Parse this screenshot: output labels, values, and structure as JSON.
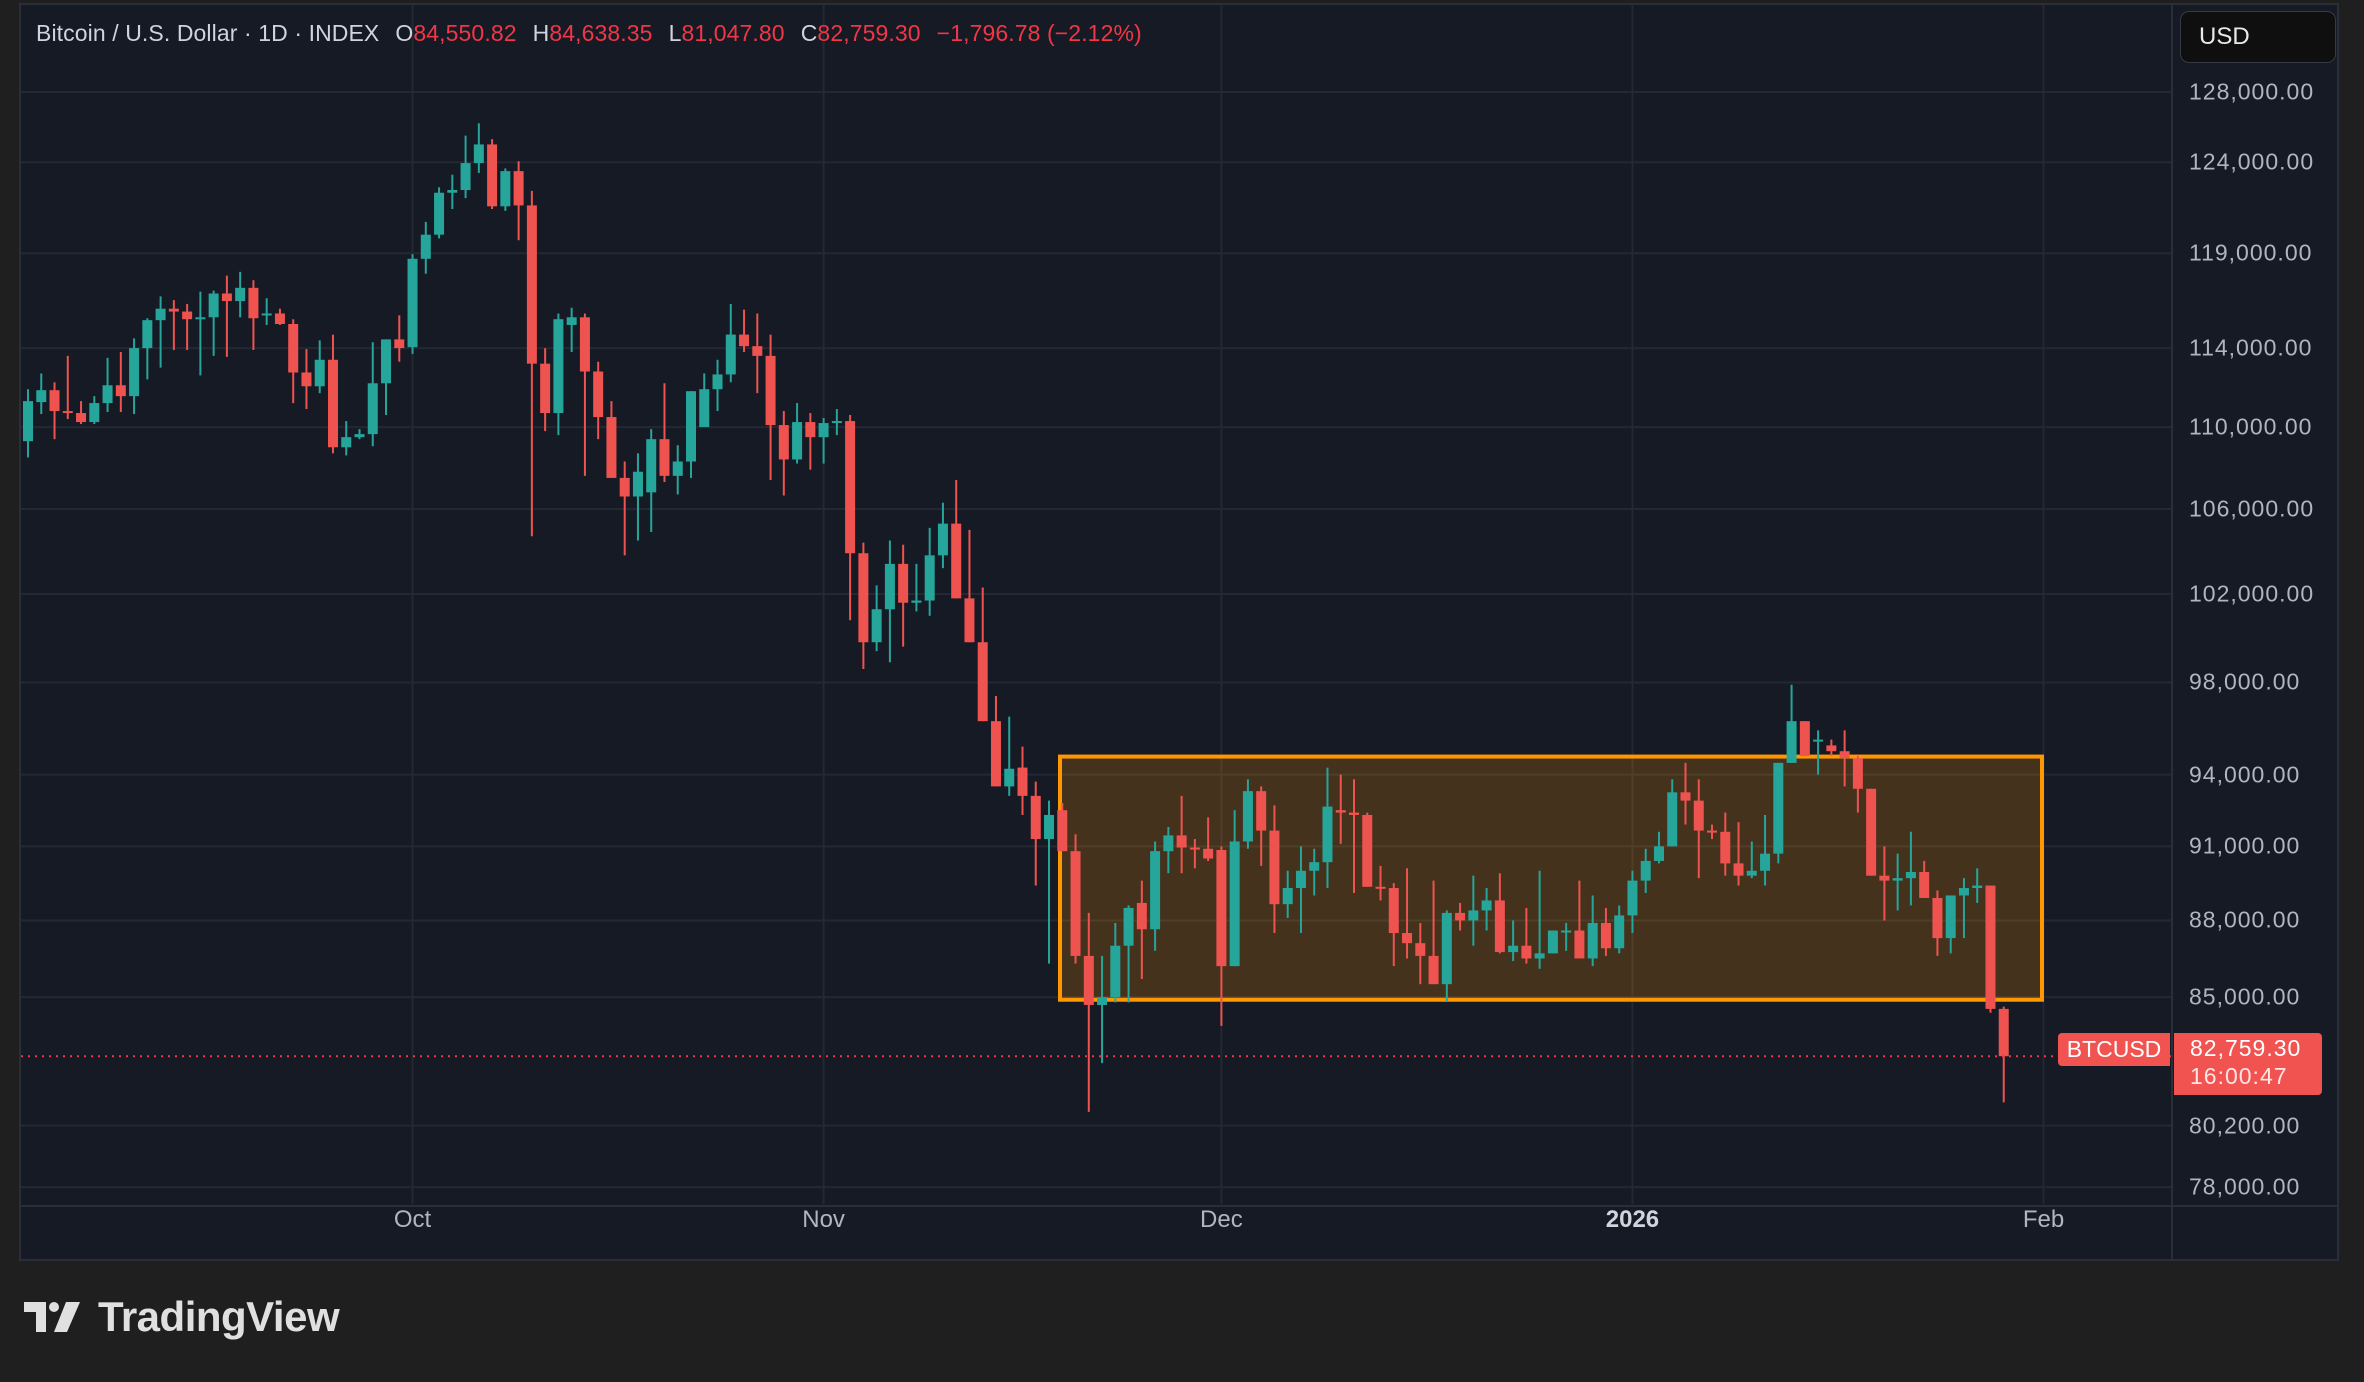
{
  "header": {
    "title": "Bitcoin / U.S. Dollar · 1D · INDEX",
    "ohlc": [
      {
        "key": "O",
        "value": "84,550.82"
      },
      {
        "key": "H",
        "value": "84,638.35"
      },
      {
        "key": "L",
        "value": "81,047.80"
      },
      {
        "key": "C",
        "value": "82,759.30"
      }
    ],
    "change": "−1,796.78 (−2.12%)"
  },
  "currency_button": "USD",
  "symbol_tag": "BTCUSD",
  "last_price": {
    "value": "82,759.30",
    "countdown": "16:00:47",
    "price": 82759.3
  },
  "brand": "TradingView",
  "colors": {
    "up": "#26a69a",
    "down": "#ef5350",
    "box_border": "#ff9800",
    "box_fill": "rgba(255,152,0,0.20)",
    "grid": "#242833",
    "background": "#161a25"
  },
  "chart_data": {
    "type": "candlestick",
    "title": "Bitcoin / U.S. Dollar · 1D · INDEX",
    "symbol": "BTCUSD",
    "interval": "1D",
    "scale": "log",
    "ylim": [
      77000,
      130000
    ],
    "y_ticks": [
      128000,
      124000,
      119000,
      114000,
      110000,
      106000,
      102000,
      98000,
      94000,
      91000,
      88000,
      85000,
      80200,
      78000
    ],
    "y_tick_labels": [
      "128,000.00",
      "124,000.00",
      "119,000.00",
      "114,000.00",
      "110,000.00",
      "106,000.00",
      "102,000.00",
      "98,000.00",
      "94,000.00",
      "91,000.00",
      "88,000.00",
      "85,000.00",
      "80,200.00",
      "78,000.00"
    ],
    "x_ticks": [
      {
        "label": "Oct",
        "day_index": 29,
        "bold": false
      },
      {
        "label": "Nov",
        "day_index": 60,
        "bold": false
      },
      {
        "label": "Dec",
        "day_index": 90,
        "bold": false
      },
      {
        "label": "2026",
        "day_index": 121,
        "bold": true
      },
      {
        "label": "Feb",
        "day_index": 152,
        "bold": false
      }
    ],
    "start_date": "Sep 2",
    "end_date": "Jan 30",
    "candles_ohlc": [
      [
        109300,
        111900,
        108500,
        111300
      ],
      [
        111250,
        112700,
        110650,
        111850
      ],
      [
        111850,
        112250,
        109400,
        110800
      ],
      [
        110800,
        113600,
        110400,
        110700
      ],
      [
        110700,
        111300,
        110150,
        110250
      ],
      [
        110250,
        111550,
        110150,
        111200
      ],
      [
        111200,
        113500,
        110750,
        112100
      ],
      [
        112100,
        113800,
        110750,
        111550
      ],
      [
        111550,
        114500,
        110650,
        114000
      ],
      [
        114000,
        115550,
        112400,
        115450
      ],
      [
        115450,
        116700,
        113000,
        116050
      ],
      [
        116050,
        116500,
        113900,
        115900
      ],
      [
        115900,
        116300,
        113900,
        115500
      ],
      [
        115500,
        116950,
        112600,
        115600
      ],
      [
        115600,
        117000,
        113600,
        116850
      ],
      [
        116850,
        117800,
        113550,
        116450
      ],
      [
        116450,
        118000,
        115600,
        117150
      ],
      [
        117150,
        117550,
        113900,
        115550
      ],
      [
        115750,
        116600,
        115200,
        115800
      ],
      [
        115800,
        116050,
        115200,
        115250
      ],
      [
        115250,
        115500,
        111200,
        112750
      ],
      [
        112750,
        113950,
        110900,
        112050
      ],
      [
        112050,
        114400,
        111700,
        113400
      ],
      [
        113400,
        114700,
        108700,
        109000
      ],
      [
        109000,
        110300,
        108600,
        109500
      ],
      [
        109500,
        109900,
        109400,
        109650
      ],
      [
        109650,
        114300,
        109050,
        112200
      ],
      [
        112200,
        114400,
        110600,
        114450
      ],
      [
        114450,
        115700,
        113300,
        114000
      ],
      [
        114050,
        118950,
        113700,
        118700
      ],
      [
        118700,
        120700,
        117900,
        120000
      ],
      [
        120000,
        122600,
        119800,
        122300
      ],
      [
        122300,
        123300,
        121400,
        122450
      ],
      [
        122450,
        125500,
        122000,
        123950
      ],
      [
        123950,
        126200,
        123400,
        125000
      ],
      [
        125000,
        125300,
        121400,
        121550
      ],
      [
        121550,
        123650,
        121300,
        123500
      ],
      [
        123500,
        124050,
        119700,
        121600
      ],
      [
        121600,
        122400,
        104700,
        113200
      ],
      [
        113200,
        114000,
        109800,
        110700
      ],
      [
        110700,
        115800,
        109600,
        115500
      ],
      [
        115200,
        116100,
        113800,
        115600
      ],
      [
        115600,
        115800,
        107600,
        112800
      ],
      [
        112800,
        113300,
        109400,
        110500
      ],
      [
        110500,
        111300,
        107600,
        107500
      ],
      [
        107500,
        108300,
        103800,
        106600
      ],
      [
        106600,
        108700,
        104500,
        107800
      ],
      [
        106800,
        109900,
        104900,
        109400
      ],
      [
        109400,
        112200,
        107300,
        107600
      ],
      [
        107600,
        109100,
        106700,
        108300
      ],
      [
        108300,
        111400,
        107500,
        111800
      ],
      [
        110000,
        112700,
        110900,
        111900
      ],
      [
        111900,
        113400,
        110800,
        112650
      ],
      [
        112650,
        116300,
        112250,
        114700
      ],
      [
        114700,
        116000,
        113800,
        114100
      ],
      [
        114100,
        115800,
        111700,
        113600
      ],
      [
        113600,
        114700,
        107400,
        110100
      ],
      [
        110100,
        110800,
        106650,
        108400
      ],
      [
        108400,
        111200,
        108200,
        110250
      ],
      [
        110250,
        110700,
        107900,
        109500
      ],
      [
        109500,
        110450,
        108200,
        110200
      ],
      [
        110200,
        110900,
        109600,
        110300
      ],
      [
        110300,
        110600,
        100800,
        103900
      ],
      [
        103900,
        104400,
        98600,
        99800
      ],
      [
        99800,
        102400,
        99400,
        101300
      ],
      [
        101300,
        104500,
        98900,
        103400
      ],
      [
        103400,
        104300,
        99600,
        101600
      ],
      [
        101600,
        103400,
        101200,
        101700
      ],
      [
        101700,
        105100,
        101000,
        103800
      ],
      [
        103800,
        106300,
        103200,
        105300
      ],
      [
        105300,
        107400,
        102600,
        101800
      ],
      [
        101800,
        105000,
        99800,
        99800
      ],
      [
        99800,
        102300,
        96800,
        96300
      ],
      [
        96300,
        97400,
        94500,
        93500
      ],
      [
        93500,
        96500,
        93100,
        94250
      ],
      [
        94300,
        95200,
        92300,
        93100
      ],
      [
        93100,
        93700,
        89400,
        91300
      ],
      [
        91300,
        92900,
        86300,
        92300
      ],
      [
        92500,
        92800,
        91000,
        90800
      ],
      [
        90800,
        91500,
        86300,
        86600
      ],
      [
        86600,
        88300,
        80700,
        84700
      ],
      [
        84700,
        86600,
        82500,
        85000
      ],
      [
        85000,
        87900,
        84800,
        87000
      ],
      [
        87000,
        88600,
        84800,
        88500
      ],
      [
        88700,
        89600,
        85700,
        87650
      ],
      [
        87650,
        91200,
        86800,
        90800
      ],
      [
        90800,
        91800,
        89900,
        91450
      ],
      [
        91450,
        93100,
        89900,
        90950
      ],
      [
        90950,
        91300,
        90100,
        90900
      ],
      [
        90900,
        92200,
        90400,
        90500
      ],
      [
        90850,
        91000,
        83900,
        86200
      ],
      [
        86200,
        92500,
        86200,
        91200
      ],
      [
        91200,
        93800,
        90900,
        93300
      ],
      [
        93300,
        93500,
        90200,
        91650
      ],
      [
        91650,
        92700,
        87500,
        88650
      ],
      [
        88650,
        90000,
        88100,
        89300
      ],
      [
        89300,
        91000,
        87500,
        90000
      ],
      [
        90000,
        90900,
        89000,
        90350
      ],
      [
        90350,
        94300,
        89300,
        92650
      ],
      [
        92500,
        94000,
        91100,
        92400
      ],
      [
        92400,
        93800,
        89100,
        92300
      ],
      [
        92300,
        92400,
        89700,
        89350
      ],
      [
        89350,
        90200,
        88800,
        89300
      ],
      [
        89300,
        89500,
        86200,
        87500
      ],
      [
        87500,
        90100,
        86500,
        87100
      ],
      [
        87100,
        87900,
        85500,
        86600
      ],
      [
        86600,
        89600,
        85500,
        85500
      ],
      [
        85500,
        88400,
        84850,
        88300
      ],
      [
        88300,
        88700,
        87600,
        88000
      ],
      [
        88000,
        89800,
        87000,
        88400
      ],
      [
        88400,
        89300,
        87600,
        88800
      ],
      [
        88800,
        89900,
        86700,
        86750
      ],
      [
        86750,
        88000,
        86400,
        87000
      ],
      [
        87000,
        88500,
        86300,
        86500
      ],
      [
        86500,
        90000,
        86100,
        86700
      ],
      [
        86700,
        87400,
        86900,
        87600
      ],
      [
        87600,
        87900,
        86800,
        87600
      ],
      [
        87600,
        89600,
        86900,
        86500
      ],
      [
        86500,
        89000,
        86200,
        87900
      ],
      [
        87900,
        88500,
        86600,
        86900
      ],
      [
        86900,
        88600,
        86700,
        88200
      ],
      [
        88200,
        90000,
        87500,
        89600
      ],
      [
        89600,
        90900,
        89100,
        90400
      ],
      [
        90400,
        91600,
        90300,
        91000
      ],
      [
        91000,
        93800,
        91000,
        93250
      ],
      [
        93250,
        94500,
        91900,
        92900
      ],
      [
        92900,
        93800,
        89700,
        91650
      ],
      [
        91650,
        91900,
        91300,
        91600
      ],
      [
        91600,
        92400,
        89800,
        90300
      ],
      [
        90300,
        92000,
        89400,
        89800
      ],
      [
        89800,
        91200,
        89700,
        90000
      ],
      [
        90000,
        92300,
        89400,
        90700
      ],
      [
        90700,
        93500,
        90300,
        94500
      ],
      [
        94500,
        97900,
        94700,
        96300
      ],
      [
        96300,
        95500,
        95500,
        94800
      ],
      [
        95500,
        95900,
        94000,
        95500
      ],
      [
        95250,
        95500,
        94800,
        95000
      ],
      [
        95000,
        95900,
        93500,
        94700
      ],
      [
        94700,
        94800,
        92400,
        93400
      ],
      [
        93400,
        93000,
        89800,
        89800
      ],
      [
        89800,
        91000,
        88000,
        89600
      ],
      [
        89600,
        90700,
        88400,
        89700
      ],
      [
        89700,
        91600,
        88600,
        89950
      ],
      [
        89950,
        90400,
        89700,
        88900
      ],
      [
        88900,
        89200,
        86600,
        87300
      ],
      [
        87300,
        88300,
        86700,
        89000
      ],
      [
        89000,
        89700,
        87300,
        89300
      ],
      [
        89300,
        90100,
        88700,
        89400
      ],
      [
        89400,
        89400,
        84400,
        84550
      ],
      [
        84550,
        84638,
        81048,
        82759
      ]
    ],
    "annotations": [
      {
        "type": "rectangle",
        "from_day_index": 78,
        "to_day_index": 152,
        "top": 94770,
        "bottom": 84900,
        "color": "#ff9800"
      },
      {
        "type": "horizontal_line",
        "price": 82759.3,
        "style": "dotted",
        "color": "#f23645"
      }
    ]
  }
}
